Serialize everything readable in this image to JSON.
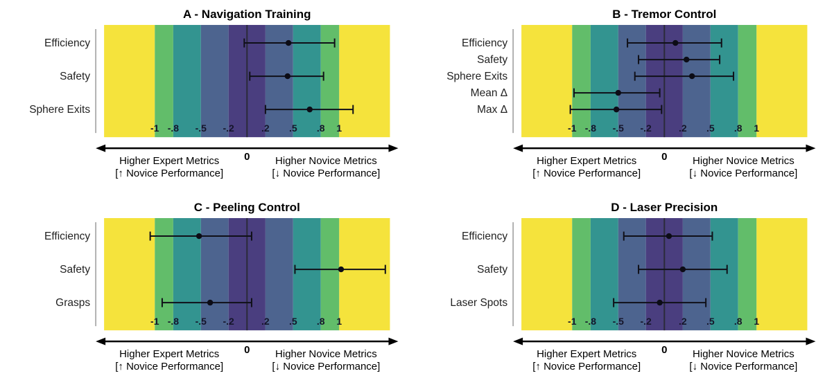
{
  "page": {
    "background": "#ffffff"
  },
  "axis": {
    "zero_label": "0",
    "left_label_line1": "Higher Expert Metrics",
    "left_label_line2": "[↑ Novice Performance]",
    "right_label_line1": "Higher Novice Metrics",
    "right_label_line2": "[↓ Novice Performance]",
    "tick_labels": [
      "-1",
      "-.8",
      "-.5",
      "-.2",
      ".2",
      ".5",
      ".8",
      "1"
    ],
    "tick_values": [
      -1,
      -0.8,
      -0.5,
      -0.2,
      0.2,
      0.5,
      0.8,
      1
    ],
    "xlim": [
      -1.55,
      1.55
    ]
  },
  "bands": {
    "edges": [
      -1.55,
      -1,
      -0.8,
      -0.5,
      -0.2,
      0.2,
      0.5,
      0.8,
      1,
      1.55
    ],
    "colors": [
      "#f5e33c",
      "#62bd6a",
      "#339490",
      "#4d648f",
      "#4a3e7f",
      "#4d648f",
      "#339490",
      "#62bd6a",
      "#f5e33c"
    ],
    "meaning": "effect-size magnitude bands (negligible to very large), mirrored around 0"
  },
  "style": {
    "error_bar_color": "#101018",
    "point_color": "#0c0c16",
    "zero_line_color": "#2b2b3a",
    "axis_color": "#000000",
    "spine_color": "#9a9a9a"
  },
  "chart_data": [
    {
      "type": "scatter",
      "subtype": "forest-plot",
      "title": "A - Navigation Training",
      "xlim": [
        -1.55,
        1.55
      ],
      "rows": [
        {
          "label": "Efficiency",
          "value": 0.45,
          "ci_low": -0.03,
          "ci_high": 0.95
        },
        {
          "label": "Safety",
          "value": 0.44,
          "ci_low": 0.03,
          "ci_high": 0.83
        },
        {
          "label": "Sphere Exits",
          "value": 0.68,
          "ci_low": 0.2,
          "ci_high": 1.15
        }
      ]
    },
    {
      "type": "scatter",
      "subtype": "forest-plot",
      "title": "B - Tremor Control",
      "xlim": [
        -1.55,
        1.55
      ],
      "rows": [
        {
          "label": "Efficiency",
          "value": 0.12,
          "ci_low": -0.4,
          "ci_high": 0.62
        },
        {
          "label": "Safety",
          "value": 0.24,
          "ci_low": -0.28,
          "ci_high": 0.6
        },
        {
          "label": "Sphere Exits",
          "value": 0.3,
          "ci_low": -0.32,
          "ci_high": 0.75
        },
        {
          "label": "Mean Δ",
          "value": -0.5,
          "ci_low": -0.98,
          "ci_high": -0.05
        },
        {
          "label": "Max Δ",
          "value": -0.52,
          "ci_low": -1.02,
          "ci_high": -0.03
        }
      ]
    },
    {
      "type": "scatter",
      "subtype": "forest-plot",
      "title": "C - Peeling Control",
      "xlim": [
        -1.55,
        1.55
      ],
      "rows": [
        {
          "label": "Efficiency",
          "value": -0.52,
          "ci_low": -1.05,
          "ci_high": 0.05
        },
        {
          "label": "Safety",
          "value": 1.02,
          "ci_low": 0.52,
          "ci_high": 1.5
        },
        {
          "label": "Grasps",
          "value": -0.4,
          "ci_low": -0.92,
          "ci_high": 0.05
        }
      ]
    },
    {
      "type": "scatter",
      "subtype": "forest-plot",
      "title": "D - Laser Precision",
      "xlim": [
        -1.55,
        1.55
      ],
      "rows": [
        {
          "label": "Efficiency",
          "value": 0.05,
          "ci_low": -0.44,
          "ci_high": 0.52
        },
        {
          "label": "Safety",
          "value": 0.2,
          "ci_low": -0.28,
          "ci_high": 0.68
        },
        {
          "label": "Laser Spots",
          "value": -0.05,
          "ci_low": -0.55,
          "ci_high": 0.45
        }
      ]
    }
  ]
}
